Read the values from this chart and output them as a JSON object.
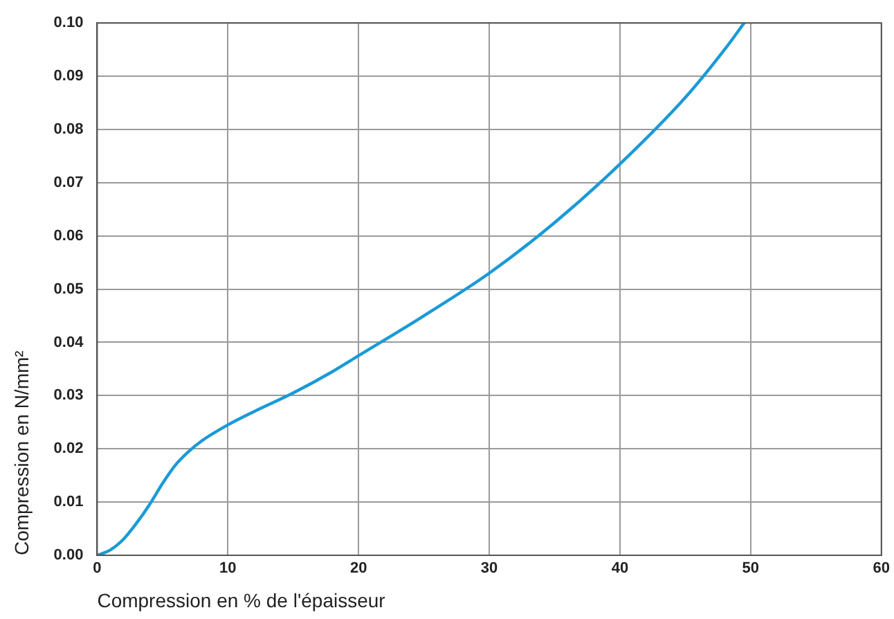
{
  "chart_data": {
    "type": "line",
    "xlabel": "Compression en % de l'épaisseur",
    "ylabel": "Compression en N/mm²",
    "series": [
      {
        "color": "#1a9ad6",
        "x": [
          0,
          1,
          2,
          3,
          4,
          5,
          6,
          7,
          8,
          10,
          12,
          15,
          18,
          20,
          25,
          30,
          35,
          40,
          45,
          48,
          49.5
        ],
        "values": [
          0,
          0.001,
          0.003,
          0.006,
          0.0095,
          0.0135,
          0.017,
          0.0195,
          0.0215,
          0.0245,
          0.027,
          0.0305,
          0.0345,
          0.0375,
          0.045,
          0.053,
          0.0625,
          0.0735,
          0.086,
          0.095,
          0.1
        ]
      }
    ],
    "xlim": [
      0,
      60
    ],
    "xticks": [
      0,
      10,
      20,
      30,
      40,
      50,
      60
    ],
    "ylim": [
      0,
      0.1
    ],
    "yticks": [
      {
        "value": 0,
        "label": "0.00"
      },
      {
        "value": 0.01,
        "label": "0.01"
      },
      {
        "value": 0.02,
        "label": "0.02"
      },
      {
        "value": 0.03,
        "label": "0.03"
      },
      {
        "value": 0.04,
        "label": "0.04"
      },
      {
        "value": 0.05,
        "label": "0.05"
      },
      {
        "value": 0.06,
        "label": "0.06"
      },
      {
        "value": 0.07,
        "label": "0.07"
      },
      {
        "value": 0.08,
        "label": "0.08"
      },
      {
        "value": 0.09,
        "label": "0.09"
      },
      {
        "value": 0.1,
        "label": "0.10"
      }
    ],
    "grid": true,
    "marker": "none",
    "line_style": "solid"
  }
}
